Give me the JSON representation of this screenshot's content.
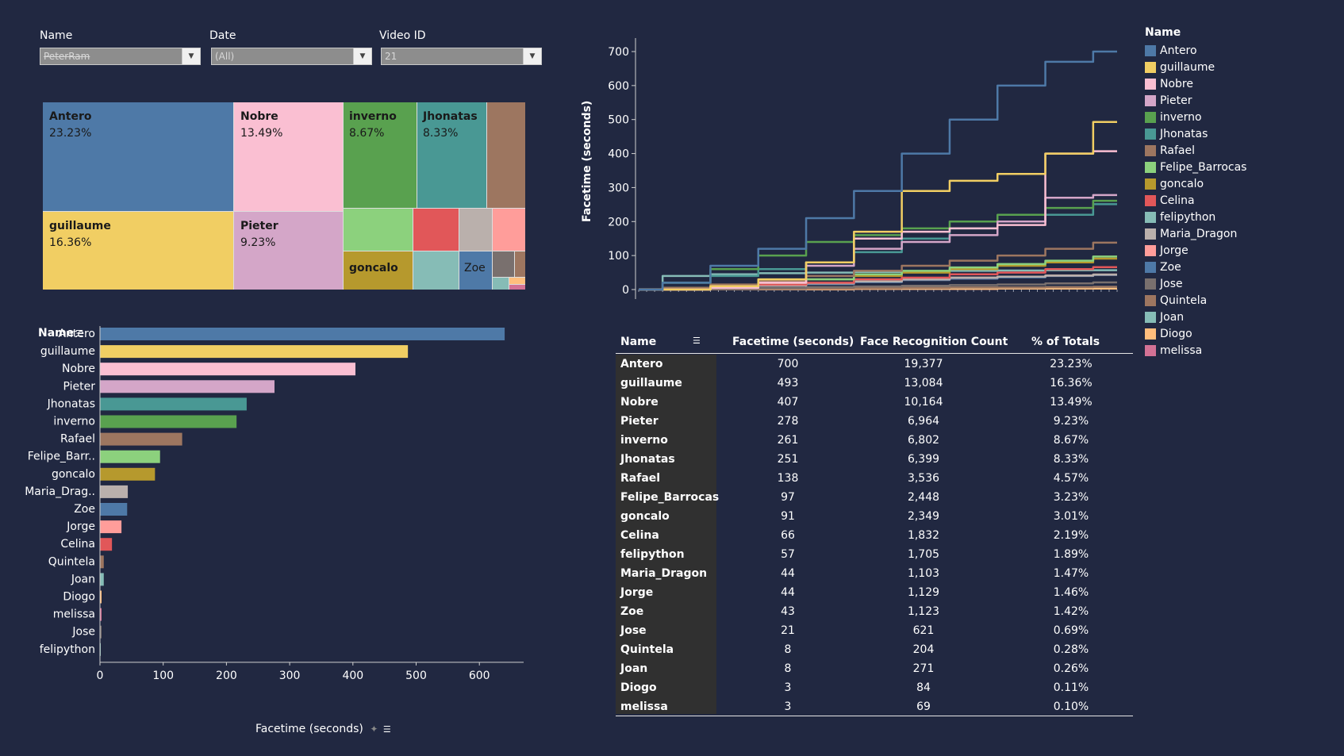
{
  "filters": [
    {
      "label": "Name",
      "value": "PeterRam"
    },
    {
      "label": "Date",
      "value": "(All)"
    },
    {
      "label": "Video ID",
      "value": "21"
    }
  ],
  "treemap": [
    {
      "name": "Antero",
      "pct": "23.23%",
      "color": "#4e79a7",
      "dark": false
    },
    {
      "name": "Nobre",
      "pct": "13.49%",
      "color": "#fabfd2",
      "dark": false
    },
    {
      "name": "inverno",
      "pct": "8.67%",
      "color": "#59a14f",
      "dark": false
    },
    {
      "name": "Jhonatas",
      "pct": "8.33%",
      "color": "#499894",
      "dark": false
    },
    {
      "name": "guillaume",
      "pct": "16.36%",
      "color": "#f1ce63",
      "dark": false
    },
    {
      "name": "Pieter",
      "pct": "9.23%",
      "color": "#d4a6c8",
      "dark": false
    },
    {
      "name": "goncalo",
      "pct": "",
      "color": "#b6992d",
      "dark": false
    },
    {
      "name": "Zoe",
      "pct": "",
      "color": "#4e79a7",
      "dark": false
    }
  ],
  "bar_chart": {
    "axis_title": "Name",
    "x_title": "Facetime (seconds)",
    "ticks": [
      "0",
      "100",
      "200",
      "300",
      "400",
      "500",
      "600"
    ]
  },
  "line_chart": {
    "y_title": "Facetime (seconds)",
    "ticks": [
      "0",
      "100",
      "200",
      "300",
      "400",
      "500",
      "600",
      "700"
    ]
  },
  "legend": {
    "title": "Name",
    "items": [
      {
        "name": "Antero",
        "color": "#4e79a7"
      },
      {
        "name": "guillaume",
        "color": "#f1ce63"
      },
      {
        "name": "Nobre",
        "color": "#fabfd2"
      },
      {
        "name": "Pieter",
        "color": "#d4a6c8"
      },
      {
        "name": "inverno",
        "color": "#59a14f"
      },
      {
        "name": "Jhonatas",
        "color": "#499894"
      },
      {
        "name": "Rafael",
        "color": "#9d7660"
      },
      {
        "name": "Felipe_Barrocas",
        "color": "#8cd17d"
      },
      {
        "name": "goncalo",
        "color": "#b6992d"
      },
      {
        "name": "Celina",
        "color": "#e15759"
      },
      {
        "name": "felipython",
        "color": "#86bcb6"
      },
      {
        "name": "Maria_Dragon",
        "color": "#bab0ac"
      },
      {
        "name": "Jorge",
        "color": "#ff9d9a"
      },
      {
        "name": "Zoe",
        "color": "#4e79a7"
      },
      {
        "name": "Jose",
        "color": "#79706e"
      },
      {
        "name": "Quintela",
        "color": "#9d7660"
      },
      {
        "name": "Joan",
        "color": "#86bcb6"
      },
      {
        "name": "Diogo",
        "color": "#ffbe7d"
      },
      {
        "name": "melissa",
        "color": "#d37295"
      }
    ]
  },
  "table": {
    "headers": [
      "Name",
      "Facetime (seconds)",
      "Face Recognition Count",
      "% of Totals"
    ],
    "rows": [
      [
        "Antero",
        "700",
        "19,377",
        "23.23%"
      ],
      [
        "guillaume",
        "493",
        "13,084",
        "16.36%"
      ],
      [
        "Nobre",
        "407",
        "10,164",
        "13.49%"
      ],
      [
        "Pieter",
        "278",
        "6,964",
        "9.23%"
      ],
      [
        "inverno",
        "261",
        "6,802",
        "8.67%"
      ],
      [
        "Jhonatas",
        "251",
        "6,399",
        "8.33%"
      ],
      [
        "Rafael",
        "138",
        "3,536",
        "4.57%"
      ],
      [
        "Felipe_Barrocas",
        "97",
        "2,448",
        "3.23%"
      ],
      [
        "goncalo",
        "91",
        "2,349",
        "3.01%"
      ],
      [
        "Celina",
        "66",
        "1,832",
        "2.19%"
      ],
      [
        "felipython",
        "57",
        "1,705",
        "1.89%"
      ],
      [
        "Maria_Dragon",
        "44",
        "1,103",
        "1.47%"
      ],
      [
        "Jorge",
        "44",
        "1,129",
        "1.46%"
      ],
      [
        "Zoe",
        "43",
        "1,123",
        "1.42%"
      ],
      [
        "Jose",
        "21",
        "621",
        "0.69%"
      ],
      [
        "Quintela",
        "8",
        "204",
        "0.28%"
      ],
      [
        "Joan",
        "8",
        "271",
        "0.26%"
      ],
      [
        "Diogo",
        "3",
        "84",
        "0.11%"
      ],
      [
        "melissa",
        "3",
        "69",
        "0.10%"
      ]
    ]
  },
  "chart_data": [
    {
      "type": "bar",
      "orientation": "horizontal",
      "categories": [
        "Antero",
        "guillaume",
        "Nobre",
        "Pieter",
        "Jhonatas",
        "inverno",
        "Rafael",
        "Felipe_Barr..",
        "goncalo",
        "Maria_Drag..",
        "Zoe",
        "Jorge",
        "Celina",
        "Quintela",
        "Joan",
        "Diogo",
        "melissa",
        "Jose",
        "felipython"
      ],
      "values": [
        640,
        487,
        404,
        276,
        232,
        216,
        130,
        95,
        87,
        44,
        43,
        34,
        19,
        6,
        6,
        2,
        2,
        1,
        0
      ],
      "colors": [
        "#4e79a7",
        "#f1ce63",
        "#fabfd2",
        "#d4a6c8",
        "#499894",
        "#59a14f",
        "#9d7660",
        "#8cd17d",
        "#b6992d",
        "#bab0ac",
        "#4e79a7",
        "#ff9d9a",
        "#e15759",
        "#9d7660",
        "#86bcb6",
        "#ffbe7d",
        "#d37295",
        "#79706e",
        "#86bcb6"
      ],
      "xlabel": "Facetime (seconds)",
      "ylabel": "Name",
      "xlim": [
        0,
        670
      ],
      "grid": false
    },
    {
      "type": "line",
      "ylabel": "Facetime (seconds)",
      "ylim": [
        0,
        700
      ],
      "x": [
        0,
        10,
        20,
        30,
        40,
        50,
        60,
        70,
        80,
        90,
        100
      ],
      "series": [
        {
          "name": "Antero",
          "color": "#4e79a7",
          "values": [
            0,
            20,
            70,
            120,
            210,
            290,
            400,
            500,
            600,
            670,
            700
          ]
        },
        {
          "name": "guillaume",
          "color": "#f1ce63",
          "values": [
            0,
            0,
            10,
            30,
            80,
            170,
            290,
            320,
            340,
            400,
            493
          ]
        },
        {
          "name": "Nobre",
          "color": "#fabfd2",
          "values": [
            0,
            0,
            5,
            20,
            80,
            150,
            170,
            180,
            190,
            400,
            407
          ]
        },
        {
          "name": "Pieter",
          "color": "#d4a6c8",
          "values": [
            0,
            0,
            5,
            20,
            70,
            120,
            140,
            160,
            200,
            270,
            278
          ]
        },
        {
          "name": "inverno",
          "color": "#59a14f",
          "values": [
            0,
            20,
            60,
            100,
            140,
            160,
            180,
            200,
            220,
            240,
            261
          ]
        },
        {
          "name": "Jhonatas",
          "color": "#499894",
          "values": [
            0,
            20,
            40,
            60,
            80,
            110,
            150,
            180,
            200,
            220,
            251
          ]
        },
        {
          "name": "Rafael",
          "color": "#9d7660",
          "values": [
            0,
            5,
            15,
            25,
            40,
            55,
            70,
            85,
            100,
            120,
            138
          ]
        },
        {
          "name": "Felipe_Barrocas",
          "color": "#8cd17d",
          "values": [
            0,
            5,
            10,
            20,
            30,
            45,
            55,
            65,
            75,
            85,
            97
          ]
        },
        {
          "name": "goncalo",
          "color": "#b6992d",
          "values": [
            0,
            5,
            10,
            20,
            30,
            40,
            50,
            60,
            70,
            80,
            91
          ]
        },
        {
          "name": "Celina",
          "color": "#e15759",
          "values": [
            0,
            5,
            10,
            15,
            20,
            30,
            35,
            45,
            50,
            60,
            66
          ]
        },
        {
          "name": "felipython",
          "color": "#86bcb6",
          "values": [
            0,
            40,
            45,
            48,
            50,
            52,
            54,
            55,
            56,
            57,
            57
          ]
        },
        {
          "name": "Maria_Dragon",
          "color": "#bab0ac",
          "values": [
            0,
            3,
            8,
            12,
            18,
            24,
            30,
            35,
            38,
            41,
            44
          ]
        },
        {
          "name": "Jorge",
          "color": "#ff9d9a",
          "values": [
            0,
            3,
            8,
            12,
            18,
            24,
            30,
            35,
            38,
            41,
            44
          ]
        },
        {
          "name": "Zoe",
          "color": "#4e79a7",
          "values": [
            0,
            3,
            8,
            12,
            16,
            22,
            28,
            32,
            36,
            40,
            43
          ]
        },
        {
          "name": "Jose",
          "color": "#79706e",
          "values": [
            0,
            1,
            3,
            5,
            7,
            9,
            11,
            13,
            15,
            18,
            21
          ]
        },
        {
          "name": "Quintela",
          "color": "#9d7660",
          "values": [
            0,
            1,
            1,
            2,
            3,
            4,
            5,
            6,
            6,
            7,
            8
          ]
        },
        {
          "name": "Joan",
          "color": "#86bcb6",
          "values": [
            0,
            1,
            1,
            2,
            3,
            4,
            5,
            6,
            6,
            7,
            8
          ]
        },
        {
          "name": "Diogo",
          "color": "#ffbe7d",
          "values": [
            0,
            0,
            1,
            1,
            1,
            2,
            2,
            2,
            3,
            3,
            3
          ]
        },
        {
          "name": "melissa",
          "color": "#d37295",
          "values": [
            0,
            0,
            1,
            1,
            1,
            2,
            2,
            2,
            3,
            3,
            3
          ]
        }
      ]
    }
  ]
}
